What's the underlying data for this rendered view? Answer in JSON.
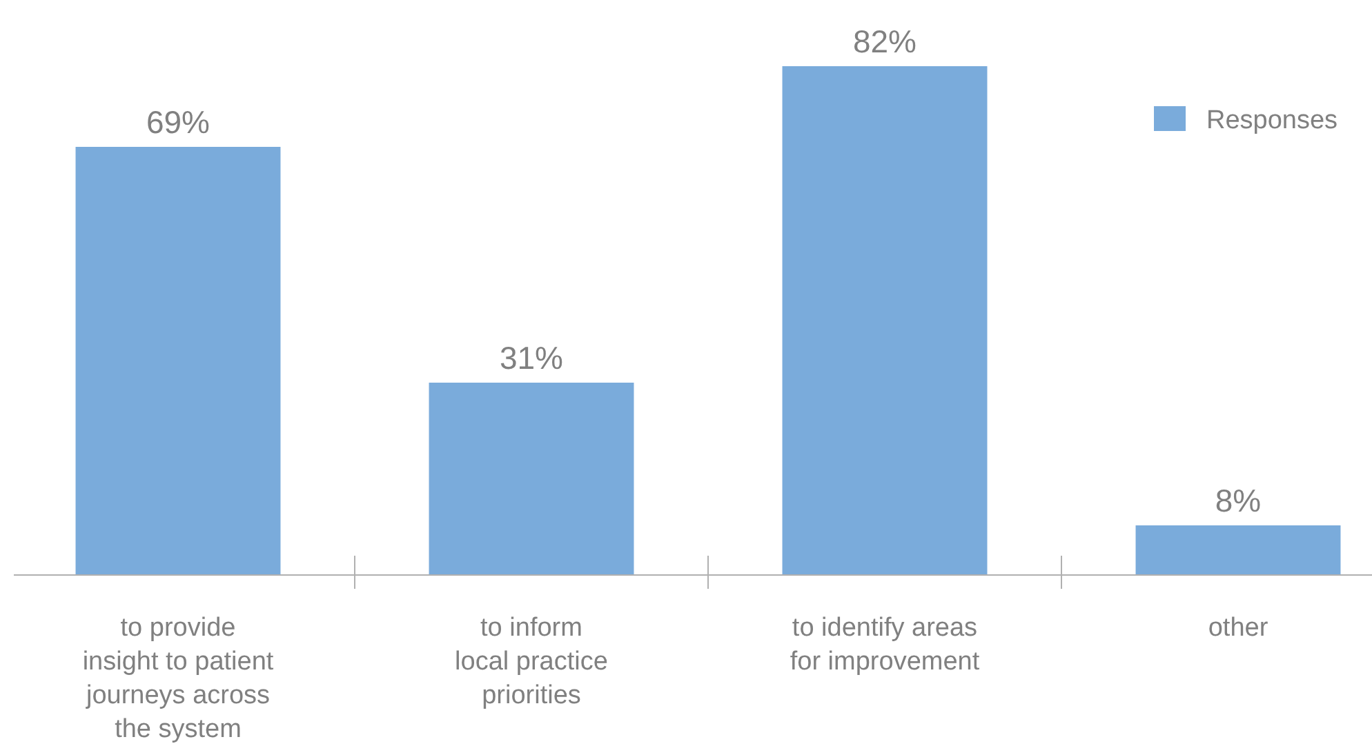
{
  "chart_data": {
    "type": "bar",
    "categories": [
      "to provide\ninsight to patient\njourneys across\nthe system",
      "to inform\nlocal practice\npriorities",
      "to identify areas\nfor improvement",
      "other"
    ],
    "series": [
      {
        "name": "Responses",
        "color": "#7aabdb",
        "values": [
          69,
          31,
          82,
          8
        ],
        "value_labels": [
          "69%",
          "31%",
          "82%",
          "8%"
        ]
      }
    ],
    "legend": "top right"
  }
}
